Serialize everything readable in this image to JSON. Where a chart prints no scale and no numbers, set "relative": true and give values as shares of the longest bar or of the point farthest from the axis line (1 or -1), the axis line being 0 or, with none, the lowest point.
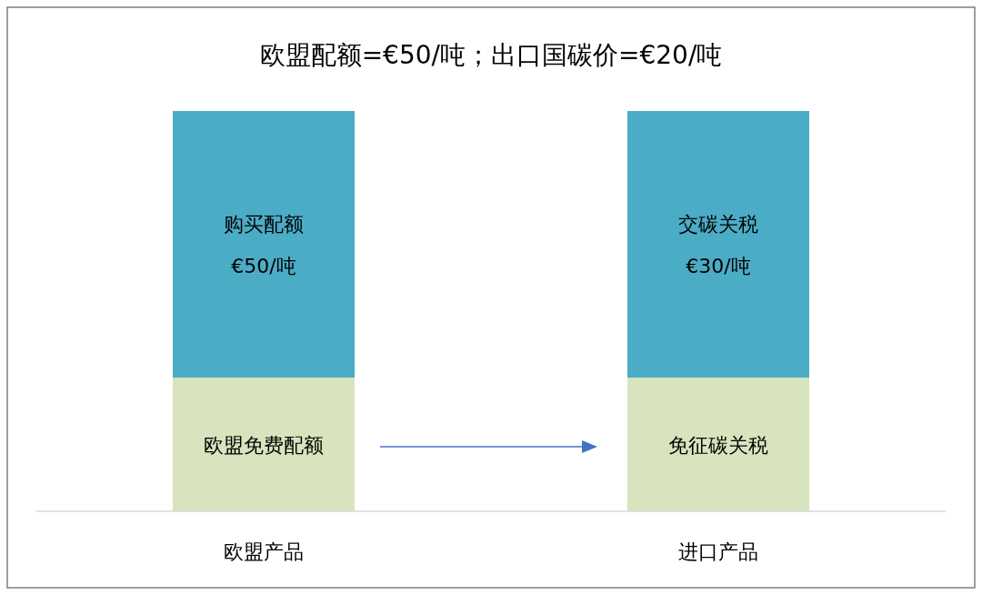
{
  "chart_data": {
    "type": "bar",
    "title": "欧盟配额=€50/吨；出口国碳价=€20/吨",
    "categories": [
      "欧盟产品",
      "进口产品"
    ],
    "stacked": true,
    "relative": true,
    "series": [
      {
        "color": "#d7e4bd",
        "values": [
          0.334,
          0.334
        ]
      },
      {
        "color": "#4bacc6",
        "values": [
          0.666,
          0.666
        ]
      }
    ],
    "annotations": [
      "欧盟免费配额",
      "免征碳关税",
      "购买配额\n€50/吨",
      "交碳关税\n€30/吨"
    ]
  }
}
